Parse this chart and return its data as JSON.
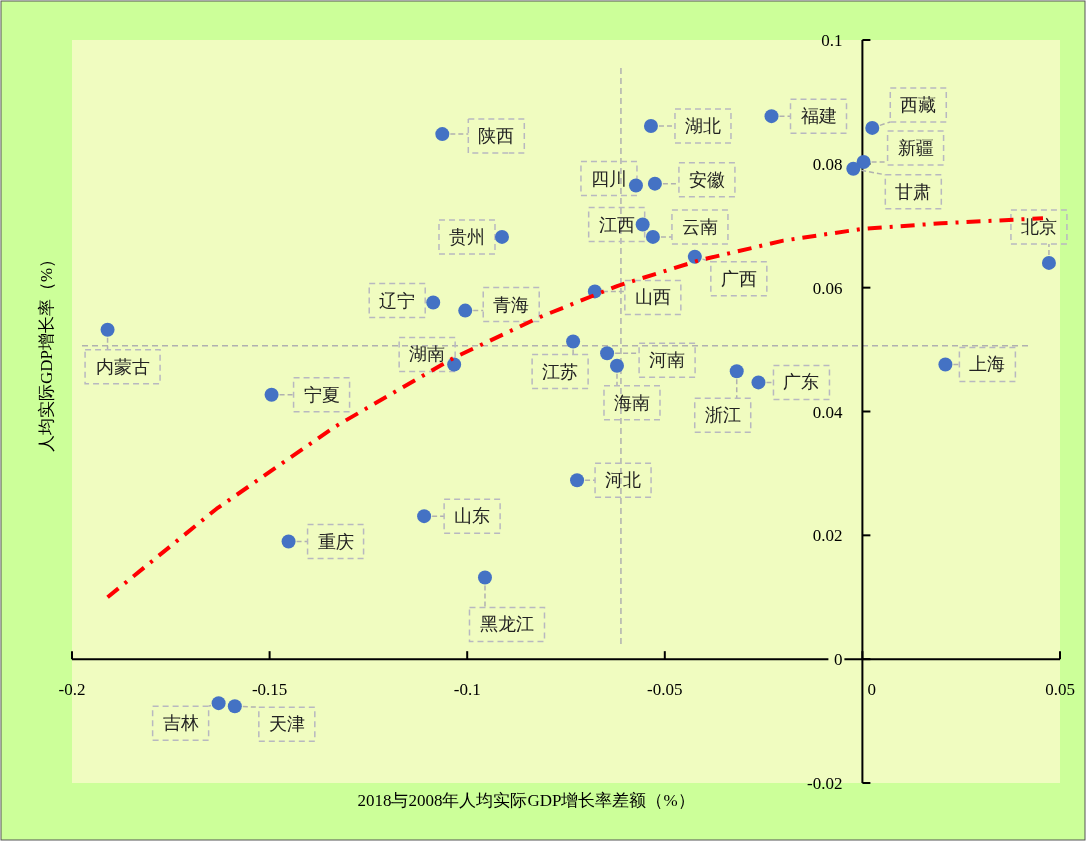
{
  "chart_data": {
    "type": "scatter",
    "xlabel": "2018与2008年人均实际GDP增长率差额（%）",
    "ylabel": "人均实际GDP增长率（%）",
    "xlim": [
      -0.2,
      0.05
    ],
    "ylim": [
      -0.02,
      0.1
    ],
    "xticks": [
      -0.2,
      -0.15,
      -0.1,
      -0.05,
      0,
      0.05
    ],
    "yticks": [
      -0.02,
      0,
      0.02,
      0.04,
      0.06,
      0.08,
      0.1
    ],
    "series": [
      {
        "type": "scatter",
        "color": "#4472c4",
        "marker": "circle",
        "x": [
          -0.191,
          -0.1063,
          -0.0912,
          -0.1086,
          -0.1005,
          -0.1033,
          -0.1495,
          -0.1452,
          -0.1109,
          -0.0955,
          -0.1629,
          -0.1588,
          -0.0722,
          -0.0535,
          -0.023,
          -0.0573,
          -0.0525,
          -0.0556,
          -0.053,
          -0.0424,
          -0.0677,
          -0.0732,
          -0.0646,
          -0.0621,
          -0.0318,
          -0.0263,
          0.0025,
          0.0003,
          -0.0023,
          0.021,
          0.0472
        ],
        "values": [
          0.0532,
          0.0848,
          0.0682,
          0.0576,
          0.0563,
          0.0476,
          0.0427,
          0.019,
          0.0231,
          0.0132,
          -0.0071,
          -0.0076,
          0.0289,
          0.0861,
          0.0877,
          0.0765,
          0.0768,
          0.0702,
          0.0682,
          0.065,
          0.0594,
          0.0513,
          0.0494,
          0.0474,
          0.0465,
          0.0447,
          0.0858,
          0.0803,
          0.0792,
          0.0476,
          0.064
        ]
      },
      {
        "type": "line",
        "color": "#ff0000",
        "line_style": "dashed",
        "x": [
          -0.191,
          -0.1634,
          -0.1336,
          -0.1033,
          -0.0818,
          -0.0619,
          -0.0414,
          -0.02,
          0,
          0.02,
          0.0457
        ],
        "values": [
          0.01,
          0.0243,
          0.0375,
          0.0487,
          0.0552,
          0.0603,
          0.0644,
          0.0676,
          0.0695,
          0.0704,
          0.0712
        ]
      }
    ],
    "ref_lines": [
      {
        "axis": "x",
        "value": -0.0611,
        "color": "#b0b0b0",
        "line_style": "dashed"
      },
      {
        "axis": "y",
        "value": 0.0506,
        "color": "#b0b0b0",
        "line_style": "dashed"
      }
    ],
    "annotations": [
      {
        "text": "内蒙古",
        "x": -0.191,
        "y": 0.0532
      },
      {
        "text": "陕西",
        "x": -0.1063,
        "y": 0.0848
      },
      {
        "text": "贵州",
        "x": -0.0912,
        "y": 0.0682
      },
      {
        "text": "辽宁",
        "x": -0.1086,
        "y": 0.0576
      },
      {
        "text": "青海",
        "x": -0.1005,
        "y": 0.0563
      },
      {
        "text": "湖南",
        "x": -0.1033,
        "y": 0.0476
      },
      {
        "text": "宁夏",
        "x": -0.1495,
        "y": 0.0427
      },
      {
        "text": "重庆",
        "x": -0.1452,
        "y": 0.019
      },
      {
        "text": "山东",
        "x": -0.1109,
        "y": 0.0231
      },
      {
        "text": "黑龙江",
        "x": -0.0955,
        "y": 0.0132
      },
      {
        "text": "吉林",
        "x": -0.1629,
        "y": -0.0071
      },
      {
        "text": "天津",
        "x": -0.1588,
        "y": -0.0076
      },
      {
        "text": "河北",
        "x": -0.0722,
        "y": 0.0289
      },
      {
        "text": "湖北",
        "x": -0.0535,
        "y": 0.0861
      },
      {
        "text": "福建",
        "x": -0.023,
        "y": 0.0877
      },
      {
        "text": "四川",
        "x": -0.0573,
        "y": 0.0765
      },
      {
        "text": "安徽",
        "x": -0.0525,
        "y": 0.0768
      },
      {
        "text": "江西",
        "x": -0.0556,
        "y": 0.0702
      },
      {
        "text": "云南",
        "x": -0.053,
        "y": 0.0682
      },
      {
        "text": "广西",
        "x": -0.0424,
        "y": 0.065
      },
      {
        "text": "山西",
        "x": -0.0677,
        "y": 0.0594
      },
      {
        "text": "江苏",
        "x": -0.0732,
        "y": 0.0513
      },
      {
        "text": "河南",
        "x": -0.0646,
        "y": 0.0494
      },
      {
        "text": "海南",
        "x": -0.0621,
        "y": 0.0474
      },
      {
        "text": "浙江",
        "x": -0.0318,
        "y": 0.0465
      },
      {
        "text": "广东",
        "x": -0.0263,
        "y": 0.0447
      },
      {
        "text": "西藏",
        "x": 0.0025,
        "y": 0.0858
      },
      {
        "text": "新疆",
        "x": 0.0003,
        "y": 0.0803
      },
      {
        "text": "甘肃",
        "x": -0.0023,
        "y": 0.0792
      },
      {
        "text": "上海",
        "x": 0.021,
        "y": 0.0476
      },
      {
        "text": "北京",
        "x": 0.0472,
        "y": 0.064
      }
    ]
  }
}
